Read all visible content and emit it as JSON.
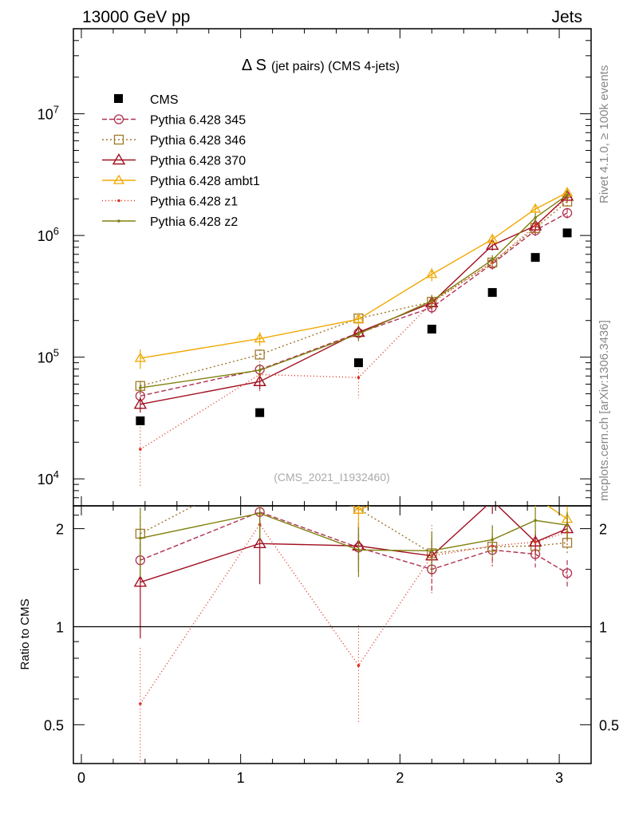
{
  "header": {
    "left": "13000 GeV pp",
    "right": "Jets"
  },
  "side_labels": {
    "top": "Rivet 4.1.0, ≥ 100k events",
    "bottom": "mcplots.cern.ch [arXiv:1306.3436]"
  },
  "chart_data": {
    "type": "line",
    "title_main": "Δ S",
    "title_sub": "(jet pairs) (CMS 4-jets)",
    "watermark": "(CMS_2021_I1932460)",
    "ratio_ylabel": "Ratio to CMS",
    "x": [
      0.37,
      1.12,
      1.74,
      2.2,
      2.58,
      2.85,
      3.05
    ],
    "xlim": [
      -0.05,
      3.2
    ],
    "ylim_main": [
      6000,
      50000000
    ],
    "ylim_ratio": [
      0.38,
      2.35
    ],
    "x_ticks": [
      "0",
      "1",
      "2",
      "3"
    ],
    "y_ticks_main": [
      "10^4",
      "10^5",
      "10^6",
      "10^7"
    ],
    "y_ticks_ratio": [
      "0.5",
      "1",
      "2"
    ],
    "reference": {
      "name": "CMS",
      "color": "#000000",
      "values": [
        30000,
        35000,
        90000,
        170000,
        340000,
        660000,
        1050000
      ]
    },
    "series": [
      {
        "name": "Pythia 6.428 345",
        "color": "#b03050",
        "dash": "6,3",
        "marker": "circle",
        "values": [
          48000,
          79000,
          158000,
          256000,
          585000,
          1100000,
          1530000
        ],
        "errors": [
          6000,
          9000,
          18000,
          30000,
          60000,
          110000,
          150000
        ],
        "ratio": [
          1.6,
          2.25,
          1.75,
          1.5,
          1.72,
          1.67,
          1.46
        ],
        "ratio_err": [
          0.22,
          0.35,
          0.18,
          0.22,
          0.18,
          0.15,
          0.14
        ]
      },
      {
        "name": "Pythia 6.428 346",
        "color": "#a07828",
        "dash": "2,3",
        "marker": "square",
        "values": [
          58000,
          105000,
          208000,
          285000,
          600000,
          1150000,
          1900000
        ],
        "errors": [
          6000,
          11000,
          22000,
          30000,
          60000,
          110000,
          180000
        ],
        "ratio": [
          1.93,
          3.0,
          2.3,
          1.68,
          1.76,
          1.77,
          1.81
        ],
        "ratio_err": [
          0.25,
          0.4,
          0.25,
          0.2,
          0.18,
          0.15,
          0.15
        ]
      },
      {
        "name": "Pythia 6.428 370",
        "color": "#a01020",
        "dash": "",
        "marker": "triangle",
        "values": [
          41000,
          63000,
          160000,
          280000,
          830000,
          1200000,
          2100000
        ],
        "errors": [
          6000,
          9000,
          20000,
          30000,
          80000,
          110000,
          180000
        ],
        "ratio": [
          1.37,
          1.8,
          1.77,
          1.65,
          2.44,
          1.82,
          2.0
        ],
        "ratio_err": [
          0.45,
          0.45,
          0.3,
          0.2,
          0.22,
          0.15,
          0.15
        ]
      },
      {
        "name": "Pythia 6.428 ambt1",
        "color": "#f0a800",
        "dash": "",
        "marker": "triangle-open-small",
        "values": [
          98000,
          142000,
          205000,
          480000,
          930000,
          1650000,
          2250000
        ],
        "errors": [
          18000,
          18000,
          25000,
          60000,
          90000,
          150000,
          200000
        ],
        "ratio": [
          3.27,
          4.06,
          2.28,
          2.82,
          2.74,
          2.5,
          2.14
        ],
        "ratio_err": [
          0.5,
          0.5,
          0.3,
          0.3,
          0.25,
          0.2,
          0.2
        ]
      },
      {
        "name": "Pythia 6.428 z1",
        "color": "#e03020",
        "dash": "1,3",
        "marker": "dot",
        "values": [
          17500,
          72000,
          68000,
          280000,
          600000,
          1200000,
          2050000
        ],
        "errors": [
          9000,
          20000,
          22000,
          40000,
          80000,
          150000,
          200000
        ],
        "ratio": [
          0.58,
          2.06,
          0.76,
          1.65,
          1.77,
          1.82,
          1.95
        ],
        "ratio_err": [
          0.28,
          0.6,
          0.25,
          0.4,
          0.25,
          0.2,
          0.2
        ]
      },
      {
        "name": "Pythia 6.428 z2",
        "color": "#808010",
        "dash": "",
        "marker": "dot",
        "values": [
          56000,
          78000,
          155000,
          290000,
          630000,
          1400000,
          2150000
        ],
        "errors": [
          6000,
          9000,
          20000,
          35000,
          60000,
          130000,
          200000
        ],
        "ratio": [
          1.87,
          2.23,
          1.72,
          1.71,
          1.85,
          2.12,
          2.05
        ],
        "ratio_err": [
          0.45,
          0.4,
          0.3,
          0.25,
          0.2,
          0.2,
          0.2
        ]
      }
    ]
  }
}
